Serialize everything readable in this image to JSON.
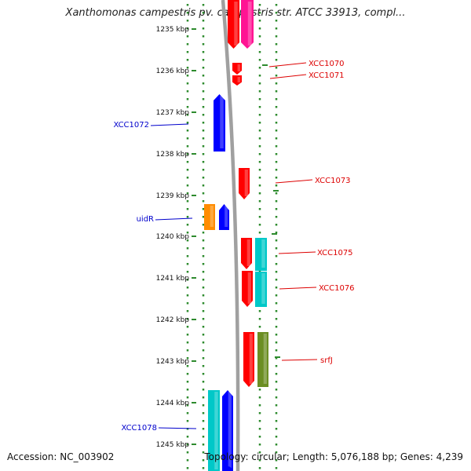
{
  "header": {
    "title": "Xanthomonas campestris pv. campestris str. ATCC 33913, compl..."
  },
  "footer": {
    "accession": "Accession: NC_003902",
    "summary": "Topology: circular; Length: 5,076,188 bp; Genes: 4,239"
  },
  "scale": {
    "ticks": [
      "1235 kbp",
      "1236 kbp",
      "1237 kbp",
      "1238 kbp",
      "1239 kbp",
      "1240 kbp",
      "1241 kbp",
      "1242 kbp",
      "1243 kbp",
      "1244 kbp",
      "1245 kbp"
    ]
  },
  "colors": {
    "red": "#ff0000",
    "magenta": "#ff1493",
    "blue": "#0000ff",
    "orange": "#ff8c00",
    "cyan": "#00c8c8",
    "olive": "#6b8e23",
    "backbone": "#888888",
    "dots": "#2e8b2e",
    "label_red": "#dd0000",
    "label_blue": "#0000cc"
  },
  "labels": [
    {
      "text": "XCC1070",
      "color": "label_red"
    },
    {
      "text": "XCC1071",
      "color": "label_red"
    },
    {
      "text": "XCC1072",
      "color": "label_blue"
    },
    {
      "text": "XCC1073",
      "color": "label_red"
    },
    {
      "text": "uidR",
      "color": "label_blue"
    },
    {
      "text": "XCC1075",
      "color": "label_red"
    },
    {
      "text": "XCC1076",
      "color": "label_red"
    },
    {
      "text": "srfJ",
      "color": "label_red"
    },
    {
      "text": "XCC1078",
      "color": "label_blue"
    }
  ]
}
